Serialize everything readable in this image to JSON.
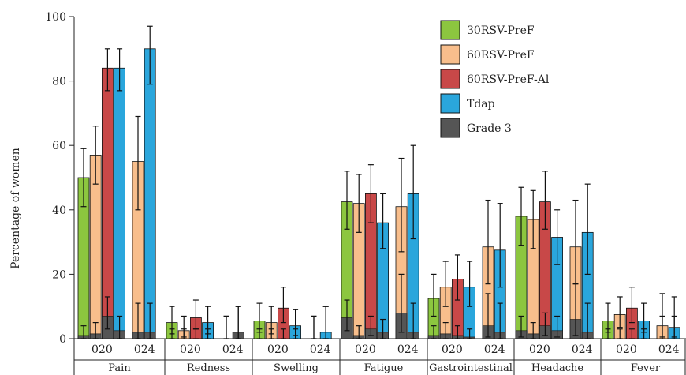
{
  "chart_data": {
    "type": "bar",
    "ylabel": "Percentage of women",
    "ylim": [
      0,
      100
    ],
    "yticks": [
      0,
      20,
      40,
      60,
      80,
      100
    ],
    "legend_position": "top-right",
    "grid": false,
    "series_names": [
      "30RSV-PreF",
      "60RSV-PreF",
      "60RSV-PreF-Al",
      "Tdap",
      "Grade 3"
    ],
    "colors": {
      "30RSV-PreF": "#8cc63f",
      "60RSV-PreF": "#f8be8c",
      "60RSV-PreF-Al": "#c84848",
      "Tdap": "#2aa6dc",
      "Grade 3": "#555555"
    },
    "groups": [
      {
        "name": "Pain",
        "studies": [
          {
            "label": "020",
            "bars": [
              {
                "series": "30RSV-PreF",
                "value": 50,
                "err": [
                  41,
                  59
                ],
                "grade3": 1,
                "g3err": [
                  0,
                  4
                ]
              },
              {
                "series": "60RSV-PreF",
                "value": 57,
                "err": [
                  48,
                  66
                ],
                "grade3": 1.5,
                "g3err": [
                  0,
                  5
                ]
              },
              {
                "series": "60RSV-PreF-Al",
                "value": 84,
                "err": [
                  77,
                  90
                ],
                "grade3": 7,
                "g3err": [
                  3,
                  13
                ]
              },
              {
                "series": "Tdap",
                "value": 84,
                "err": [
                  77,
                  90
                ],
                "grade3": 2.5,
                "g3err": [
                  0,
                  7
                ]
              }
            ]
          },
          {
            "label": "024",
            "bars": [
              {
                "series": "60RSV-PreF",
                "value": 55,
                "err": [
                  40,
                  69
                ],
                "grade3": 2,
                "g3err": [
                  0,
                  11
                ]
              },
              {
                "series": "Tdap",
                "value": 90,
                "err": [
                  79,
                  97
                ],
                "grade3": 2,
                "g3err": [
                  0,
                  11
                ]
              }
            ]
          }
        ]
      },
      {
        "name": "Redness",
        "studies": [
          {
            "label": "020",
            "bars": [
              {
                "series": "30RSV-PreF",
                "value": 5,
                "err": [
                  1.5,
                  10
                ],
                "grade3": 0,
                "g3err": [
                  0,
                  3
                ]
              },
              {
                "series": "60RSV-PreF",
                "value": 2.5,
                "err": [
                  0.5,
                  7
                ],
                "grade3": 0,
                "g3err": [
                  0,
                  3
                ]
              },
              {
                "series": "60RSV-PreF-Al",
                "value": 6.5,
                "err": [
                  3,
                  12
                ],
                "grade3": 0,
                "g3err": [
                  0,
                  3
                ]
              },
              {
                "series": "Tdap",
                "value": 5,
                "err": [
                  1.5,
                  10
                ],
                "grade3": 0,
                "g3err": [
                  0,
                  3
                ]
              }
            ]
          },
          {
            "label": "024",
            "bars": [
              {
                "series": "60RSV-PreF",
                "value": 0,
                "err": [
                  0,
                  7
                ],
                "grade3": 0,
                "g3err": [
                  0,
                  7
                ]
              },
              {
                "series": "Tdap",
                "value": 2,
                "err": [
                  0,
                  10
                ],
                "grade3": 2,
                "g3err": [
                  0,
                  10
                ]
              }
            ]
          }
        ]
      },
      {
        "name": "Swelling",
        "studies": [
          {
            "label": "020",
            "bars": [
              {
                "series": "30RSV-PreF",
                "value": 5.5,
                "err": [
                  2,
                  11
                ],
                "grade3": 0,
                "g3err": [
                  0,
                  3
                ]
              },
              {
                "series": "60RSV-PreF",
                "value": 5,
                "err": [
                  1.5,
                  10
                ],
                "grade3": 0,
                "g3err": [
                  0,
                  3
                ]
              },
              {
                "series": "60RSV-PreF-Al",
                "value": 9.5,
                "err": [
                  5,
                  16
                ],
                "grade3": 0,
                "g3err": [
                  0,
                  3
                ]
              },
              {
                "series": "Tdap",
                "value": 4,
                "err": [
                  1,
                  9
                ],
                "grade3": 0,
                "g3err": [
                  0,
                  3
                ]
              }
            ]
          },
          {
            "label": "024",
            "bars": [
              {
                "series": "60RSV-PreF",
                "value": 0,
                "err": [
                  0,
                  7
                ],
                "grade3": 0,
                "g3err": [
                  0,
                  7
                ]
              },
              {
                "series": "Tdap",
                "value": 2,
                "err": [
                  0,
                  10
                ],
                "grade3": 0,
                "g3err": [
                  0,
                  10
                ]
              }
            ]
          }
        ]
      },
      {
        "name": "Fatigue",
        "studies": [
          {
            "label": "020",
            "bars": [
              {
                "series": "30RSV-PreF",
                "value": 42.5,
                "err": [
                  34,
                  52
                ],
                "grade3": 6.5,
                "g3err": [
                  2.5,
                  12
                ]
              },
              {
                "series": "60RSV-PreF",
                "value": 42,
                "err": [
                  33,
                  51
                ],
                "grade3": 1,
                "g3err": [
                  0,
                  4
                ]
              },
              {
                "series": "60RSV-PreF-Al",
                "value": 45,
                "err": [
                  36,
                  54
                ],
                "grade3": 3,
                "g3err": [
                  1,
                  7
                ]
              },
              {
                "series": "Tdap",
                "value": 36,
                "err": [
                  28,
                  45
                ],
                "grade3": 2,
                "g3err": [
                  0,
                  6
                ]
              }
            ]
          },
          {
            "label": "024",
            "bars": [
              {
                "series": "60RSV-PreF",
                "value": 41,
                "err": [
                  27,
                  56
                ],
                "grade3": 8,
                "g3err": [
                  2,
                  20
                ]
              },
              {
                "series": "Tdap",
                "value": 45,
                "err": [
                  31,
                  60
                ],
                "grade3": 2,
                "g3err": [
                  0,
                  11
                ]
              }
            ]
          }
        ]
      },
      {
        "name": "Gastrointestinal",
        "studies": [
          {
            "label": "020",
            "bars": [
              {
                "series": "30RSV-PreF",
                "value": 12.5,
                "err": [
                  7,
                  20
                ],
                "grade3": 1,
                "g3err": [
                  0,
                  4
                ]
              },
              {
                "series": "60RSV-PreF",
                "value": 16,
                "err": [
                  10,
                  24
                ],
                "grade3": 1.5,
                "g3err": [
                  0,
                  5
                ]
              },
              {
                "series": "60RSV-PreF-Al",
                "value": 18.5,
                "err": [
                  12,
                  26
                ],
                "grade3": 1,
                "g3err": [
                  0,
                  4
                ]
              },
              {
                "series": "Tdap",
                "value": 16,
                "err": [
                  10,
                  24
                ],
                "grade3": 0.5,
                "g3err": [
                  0,
                  3
                ]
              }
            ]
          },
          {
            "label": "024",
            "bars": [
              {
                "series": "60RSV-PreF",
                "value": 28.5,
                "err": [
                  17,
                  43
                ],
                "grade3": 4,
                "g3err": [
                  0.5,
                  14
                ]
              },
              {
                "series": "Tdap",
                "value": 27.5,
                "err": [
                  16,
                  42
                ],
                "grade3": 2,
                "g3err": [
                  0,
                  11
                ]
              }
            ]
          }
        ]
      },
      {
        "name": "Headache",
        "studies": [
          {
            "label": "020",
            "bars": [
              {
                "series": "30RSV-PreF",
                "value": 38,
                "err": [
                  29,
                  47
                ],
                "grade3": 2.5,
                "g3err": [
                  0.5,
                  7
                ]
              },
              {
                "series": "60RSV-PreF",
                "value": 37,
                "err": [
                  28,
                  46
                ],
                "grade3": 1.5,
                "g3err": [
                  0,
                  5
                ]
              },
              {
                "series": "60RSV-PreF-Al",
                "value": 42.5,
                "err": [
                  34,
                  52
                ],
                "grade3": 4,
                "g3err": [
                  1,
                  8
                ]
              },
              {
                "series": "Tdap",
                "value": 31.5,
                "err": [
                  23,
                  40
                ],
                "grade3": 2.5,
                "g3err": [
                  0.5,
                  7
                ]
              }
            ]
          },
          {
            "label": "024",
            "bars": [
              {
                "series": "60RSV-PreF",
                "value": 28.5,
                "err": [
                  17,
                  43
                ],
                "grade3": 6,
                "g3err": [
                  1,
                  17
                ]
              },
              {
                "series": "Tdap",
                "value": 33,
                "err": [
                  20,
                  48
                ],
                "grade3": 2,
                "g3err": [
                  0,
                  11
                ]
              }
            ]
          }
        ]
      },
      {
        "name": "Fever",
        "studies": [
          {
            "label": "020",
            "bars": [
              {
                "series": "30RSV-PreF",
                "value": 5.5,
                "err": [
                  2,
                  11
                ],
                "grade3": 0,
                "g3err": [
                  0,
                  3
                ]
              },
              {
                "series": "60RSV-PreF",
                "value": 7.5,
                "err": [
                  3.5,
                  13
                ],
                "grade3": 0,
                "g3err": [
                  0,
                  3
                ]
              },
              {
                "series": "60RSV-PreF-Al",
                "value": 9.5,
                "err": [
                  5,
                  16
                ],
                "grade3": 0,
                "g3err": [
                  0,
                  3
                ]
              },
              {
                "series": "Tdap",
                "value": 5.5,
                "err": [
                  2,
                  11
                ],
                "grade3": 0,
                "g3err": [
                  0,
                  3
                ]
              }
            ]
          },
          {
            "label": "024",
            "bars": [
              {
                "series": "60RSV-PreF",
                "value": 4,
                "err": [
                  0.5,
                  14
                ],
                "grade3": 0,
                "g3err": [
                  0,
                  7
                ]
              },
              {
                "series": "Tdap",
                "value": 3.5,
                "err": [
                  0.5,
                  13
                ],
                "grade3": 0,
                "g3err": [
                  0,
                  7
                ]
              }
            ]
          }
        ]
      }
    ]
  }
}
